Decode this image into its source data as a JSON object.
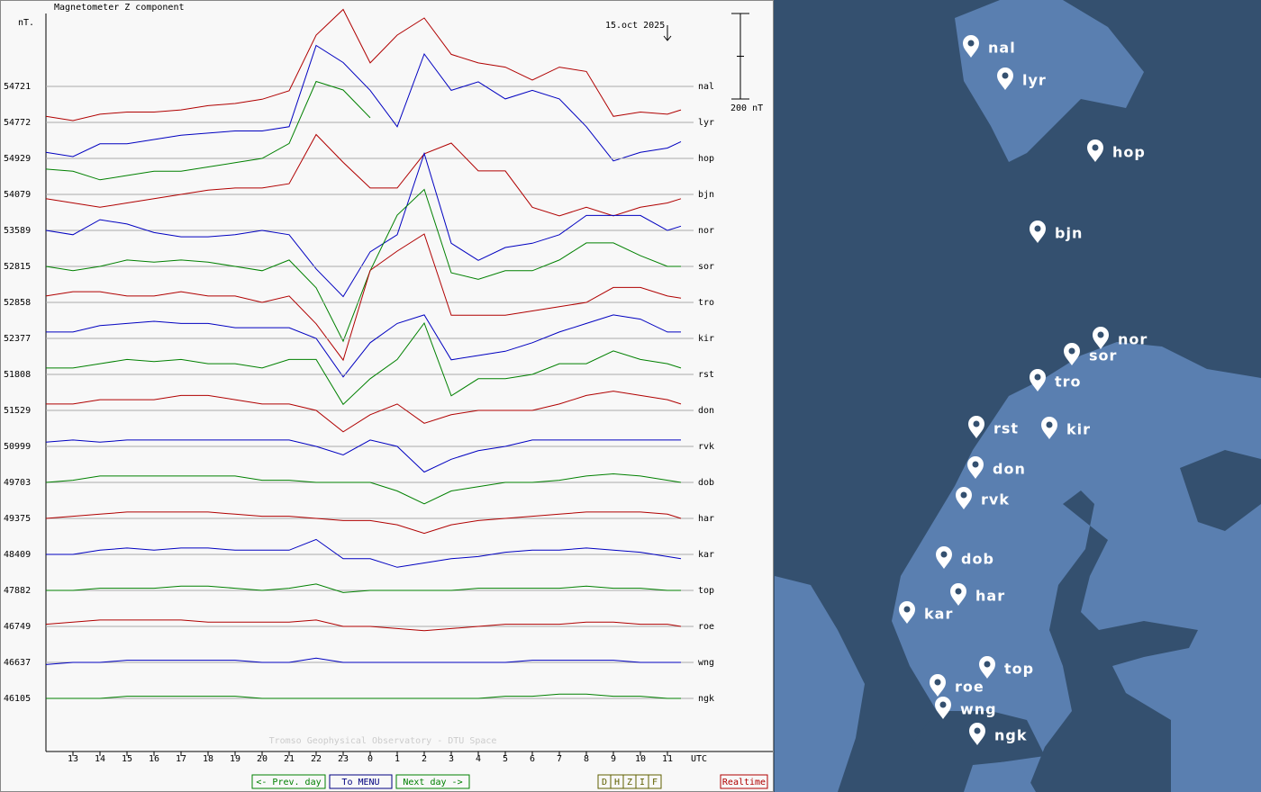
{
  "chart_data": {
    "type": "line",
    "title": "Magnetometer Z component",
    "unit_label": "nT.",
    "date_label": "15.oct 2025",
    "scale": {
      "value": 200,
      "label": "200 nT"
    },
    "credit": "Tromso Geophysical Observatory - DTU Space",
    "xlabel": "UTC",
    "xlim": [
      0,
      26.9
    ],
    "xticks": [
      {
        "value": 1,
        "label": "13"
      },
      {
        "value": 2,
        "label": "14"
      },
      {
        "value": 3,
        "label": "15"
      },
      {
        "value": 4,
        "label": "16"
      },
      {
        "value": 5,
        "label": "17"
      },
      {
        "value": 6,
        "label": "18"
      },
      {
        "value": 7,
        "label": "19"
      },
      {
        "value": 8,
        "label": "20"
      },
      {
        "value": 9,
        "label": "21"
      },
      {
        "value": 10,
        "label": "22"
      },
      {
        "value": 11,
        "label": "23"
      },
      {
        "value": 12,
        "label": "0"
      },
      {
        "value": 13,
        "label": "1"
      },
      {
        "value": 14,
        "label": "2"
      },
      {
        "value": 15,
        "label": "3"
      },
      {
        "value": 16,
        "label": "4"
      },
      {
        "value": 17,
        "label": "5"
      },
      {
        "value": 18,
        "label": "6"
      },
      {
        "value": 19,
        "label": "7"
      },
      {
        "value": 20,
        "label": "8"
      },
      {
        "value": 21,
        "label": "9"
      },
      {
        "value": 22,
        "label": "10"
      },
      {
        "value": 23,
        "label": "11"
      }
    ],
    "x": [
      0,
      1,
      2,
      3,
      4,
      5,
      6,
      7,
      8,
      9,
      10,
      11,
      12,
      13,
      14,
      15,
      16,
      17,
      18,
      19,
      20,
      21,
      22,
      23,
      23.5
    ],
    "series": [
      {
        "name": "nal",
        "color": "#b00000",
        "baseline": 54721,
        "values": [
          -70,
          -80,
          -65,
          -60,
          -60,
          -55,
          -45,
          -40,
          -30,
          -10,
          120,
          180,
          55,
          120,
          160,
          75,
          55,
          45,
          15,
          45,
          35,
          -70,
          -60,
          -65,
          -55
        ]
      },
      {
        "name": "lyr",
        "color": "#0000c0",
        "baseline": 54772,
        "values": [
          -70,
          -80,
          -50,
          -50,
          -40,
          -30,
          -25,
          -20,
          -20,
          -10,
          180,
          140,
          75,
          -10,
          160,
          75,
          95,
          55,
          75,
          55,
          -10,
          -90,
          -70,
          -60,
          -45
        ]
      },
      {
        "name": "hop",
        "color": "#008000",
        "baseline": 54929,
        "values": [
          -25,
          -30,
          -50,
          -40,
          -30,
          -30,
          -20,
          -10,
          0,
          35,
          180,
          160,
          95,
          null,
          null,
          null,
          null,
          null,
          null,
          null,
          null,
          null,
          null,
          null,
          null
        ]
      },
      {
        "name": "bjn",
        "color": "#b00000",
        "baseline": 54079,
        "values": [
          -10,
          -20,
          -30,
          -20,
          -10,
          0,
          10,
          15,
          15,
          25,
          140,
          75,
          15,
          15,
          95,
          120,
          55,
          55,
          -30,
          -50,
          -30,
          -50,
          -30,
          -20,
          -10
        ]
      },
      {
        "name": "nor",
        "color": "#0000c0",
        "baseline": 53589,
        "values": [
          0,
          -10,
          25,
          15,
          -5,
          -15,
          -15,
          -10,
          0,
          -10,
          -90,
          -155,
          -50,
          -10,
          180,
          -30,
          -70,
          -40,
          -30,
          -10,
          35,
          35,
          35,
          0,
          10
        ]
      },
      {
        "name": "sor",
        "color": "#008000",
        "baseline": 52815,
        "values": [
          0,
          -10,
          0,
          15,
          10,
          15,
          10,
          0,
          -10,
          15,
          -50,
          -175,
          -10,
          120,
          180,
          -15,
          -30,
          -10,
          -10,
          15,
          55,
          55,
          25,
          0,
          0
        ]
      },
      {
        "name": "tro",
        "color": "#b00000",
        "baseline": 52858,
        "values": [
          15,
          25,
          25,
          15,
          15,
          25,
          15,
          15,
          0,
          15,
          -50,
          -135,
          75,
          120,
          160,
          -30,
          -30,
          -30,
          -20,
          -10,
          0,
          35,
          35,
          15,
          10
        ]
      },
      {
        "name": "kir",
        "color": "#0000c0",
        "baseline": 52377,
        "values": [
          15,
          15,
          30,
          35,
          40,
          35,
          35,
          25,
          25,
          25,
          0,
          -90,
          -10,
          35,
          55,
          -50,
          -40,
          -30,
          -10,
          15,
          35,
          55,
          45,
          15,
          15
        ]
      },
      {
        "name": "rst",
        "color": "#008000",
        "baseline": 51808,
        "values": [
          15,
          15,
          25,
          35,
          30,
          35,
          25,
          25,
          15,
          35,
          35,
          -70,
          -10,
          35,
          120,
          -50,
          -10,
          -10,
          0,
          25,
          25,
          55,
          35,
          25,
          15
        ]
      },
      {
        "name": "don",
        "color": "#b00000",
        "baseline": 51529,
        "values": [
          15,
          15,
          25,
          25,
          25,
          35,
          35,
          25,
          15,
          15,
          0,
          -50,
          -10,
          15,
          -30,
          -10,
          0,
          0,
          0,
          15,
          35,
          45,
          35,
          25,
          15
        ]
      },
      {
        "name": "rvk",
        "color": "#0000c0",
        "baseline": 50999,
        "values": [
          10,
          15,
          10,
          15,
          15,
          15,
          15,
          15,
          15,
          15,
          0,
          -20,
          15,
          0,
          -60,
          -30,
          -10,
          0,
          15,
          15,
          15,
          15,
          15,
          15,
          15
        ]
      },
      {
        "name": "dob",
        "color": "#008000",
        "baseline": 49703,
        "values": [
          0,
          5,
          15,
          15,
          15,
          15,
          15,
          15,
          5,
          5,
          0,
          0,
          0,
          -20,
          -50,
          -20,
          -10,
          0,
          0,
          5,
          15,
          20,
          15,
          5,
          0
        ]
      },
      {
        "name": "har",
        "color": "#b00000",
        "baseline": 49375,
        "values": [
          0,
          5,
          10,
          15,
          15,
          15,
          15,
          10,
          5,
          5,
          0,
          -5,
          -5,
          -15,
          -35,
          -15,
          -5,
          0,
          5,
          10,
          15,
          15,
          15,
          10,
          0
        ]
      },
      {
        "name": "kar",
        "color": "#0000c0",
        "baseline": 48409,
        "values": [
          0,
          0,
          10,
          15,
          10,
          15,
          15,
          10,
          10,
          10,
          35,
          -10,
          -10,
          -30,
          -20,
          -10,
          -5,
          5,
          10,
          10,
          15,
          10,
          5,
          -5,
          -10
        ]
      },
      {
        "name": "top",
        "color": "#008000",
        "baseline": 47882,
        "values": [
          0,
          0,
          5,
          5,
          5,
          10,
          10,
          5,
          0,
          5,
          15,
          -5,
          0,
          0,
          0,
          0,
          5,
          5,
          5,
          5,
          10,
          5,
          5,
          0,
          0
        ]
      },
      {
        "name": "roe",
        "color": "#b00000",
        "baseline": 46749,
        "values": [
          5,
          10,
          15,
          15,
          15,
          15,
          10,
          10,
          10,
          10,
          15,
          0,
          0,
          -5,
          -10,
          -5,
          0,
          5,
          5,
          5,
          10,
          10,
          5,
          5,
          0
        ]
      },
      {
        "name": "wng",
        "color": "#0000c0",
        "baseline": 46637,
        "values": [
          -5,
          0,
          0,
          5,
          5,
          5,
          5,
          5,
          0,
          0,
          10,
          0,
          0,
          0,
          0,
          0,
          0,
          0,
          5,
          5,
          5,
          5,
          0,
          0,
          0
        ]
      },
      {
        "name": "ngk",
        "color": "#008000",
        "baseline": 46105,
        "values": [
          0,
          0,
          0,
          5,
          5,
          5,
          5,
          5,
          0,
          0,
          0,
          0,
          0,
          0,
          0,
          0,
          0,
          5,
          5,
          10,
          10,
          5,
          5,
          0,
          0
        ]
      }
    ]
  },
  "buttons": {
    "prev": "<- Prev. day",
    "menu": "To MENU",
    "next": "Next day ->",
    "components": [
      "D",
      "H",
      "Z",
      "I",
      "F"
    ],
    "realtime": "Realtime"
  },
  "map": {
    "stations": [
      "nal",
      "lyr",
      "hop",
      "bjn",
      "nor",
      "sor",
      "tro",
      "rst",
      "kir",
      "don",
      "rvk",
      "dob",
      "har",
      "kar",
      "top",
      "roe",
      "wng",
      "ngk"
    ]
  }
}
